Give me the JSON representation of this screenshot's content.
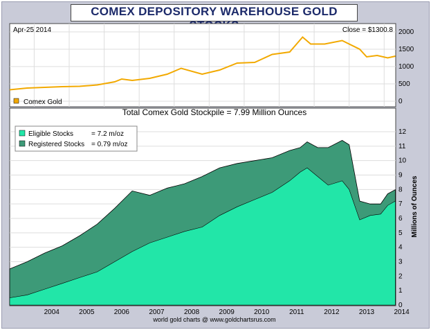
{
  "title": "COMEX DEPOSITORY WAREHOUSE GOLD STOCKS",
  "footer": "world gold charts @ www.goldchartsrus.com",
  "top_panel": {
    "date": "Apr-25  2014",
    "close": "Close = $1300.8",
    "legend": "Comex Gold",
    "color": "#f2a900",
    "y_ticks": [
      "2000",
      "1500",
      "1000",
      "500",
      "0"
    ]
  },
  "bottom_panel": {
    "title": "Total Comex Gold Stockpile = 7.99 Million Ounces",
    "ylabel": "Millions of Ounces",
    "legend": [
      {
        "name": "Eligible Stocks",
        "value": "= 7.2 m/oz",
        "color": "#22e6a8"
      },
      {
        "name": "Registered Stocks",
        "value": "= 0.79 m/oz",
        "color": "#3d9a78"
      }
    ],
    "y_ticks": [
      "12",
      "11",
      "10",
      "9",
      "8",
      "7",
      "6",
      "5",
      "4",
      "3",
      "2",
      "1",
      "0"
    ]
  },
  "x_ticks": [
    "2004",
    "2005",
    "2006",
    "2007",
    "2008",
    "2009",
    "2010",
    "2011",
    "2012",
    "2013",
    "2014"
  ],
  "chart_data": [
    {
      "type": "line",
      "title": "Comex Gold",
      "series": [
        {
          "name": "Comex Gold",
          "x": [
            2003.3,
            2003.8,
            2004.3,
            2004.8,
            2005.3,
            2005.8,
            2006.3,
            2006.5,
            2006.8,
            2007.3,
            2007.8,
            2008.2,
            2008.8,
            2009.3,
            2009.8,
            2010.3,
            2010.8,
            2011.3,
            2011.67,
            2011.9,
            2012.3,
            2012.8,
            2013.3,
            2013.5,
            2013.8,
            2014.1,
            2014.32
          ],
          "values": [
            330,
            380,
            400,
            420,
            430,
            470,
            560,
            640,
            600,
            660,
            780,
            950,
            780,
            900,
            1100,
            1120,
            1350,
            1420,
            1850,
            1650,
            1650,
            1750,
            1500,
            1280,
            1320,
            1250,
            1300
          ]
        }
      ],
      "xlim": [
        2003.3,
        2014.33
      ],
      "ylim": [
        0,
        2000
      ]
    },
    {
      "type": "area",
      "title": "Total Comex Gold Stockpile = 7.99 Million Ounces",
      "ylabel": "Millions of Ounces",
      "x": [
        2003.3,
        2003.8,
        2004.3,
        2004.8,
        2005.3,
        2005.8,
        2006.3,
        2006.8,
        2007.3,
        2007.8,
        2008.3,
        2008.8,
        2009.3,
        2009.8,
        2010.3,
        2010.8,
        2011.3,
        2011.6,
        2011.8,
        2012.1,
        2012.4,
        2012.8,
        2013.0,
        2013.3,
        2013.6,
        2013.9,
        2014.1,
        2014.32
      ],
      "series": [
        {
          "name": "Eligible Stocks",
          "values": [
            0.5,
            0.7,
            1.1,
            1.5,
            1.9,
            2.3,
            3.0,
            3.7,
            4.3,
            4.7,
            5.1,
            5.4,
            6.2,
            6.8,
            7.3,
            7.8,
            8.6,
            9.2,
            9.5,
            8.9,
            8.3,
            8.6,
            8.0,
            5.9,
            6.2,
            6.3,
            6.9,
            7.2
          ]
        },
        {
          "name": "Registered Stocks",
          "values": [
            2.0,
            2.3,
            2.5,
            2.6,
            2.9,
            3.3,
            3.7,
            4.2,
            3.3,
            3.4,
            3.3,
            3.5,
            3.3,
            3.0,
            2.7,
            2.4,
            2.1,
            1.7,
            1.8,
            2.0,
            2.6,
            2.8,
            3.1,
            1.3,
            0.8,
            0.7,
            0.8,
            0.79
          ]
        }
      ],
      "xlim": [
        2003.3,
        2014.33
      ],
      "ylim": [
        0,
        12.5
      ]
    }
  ]
}
